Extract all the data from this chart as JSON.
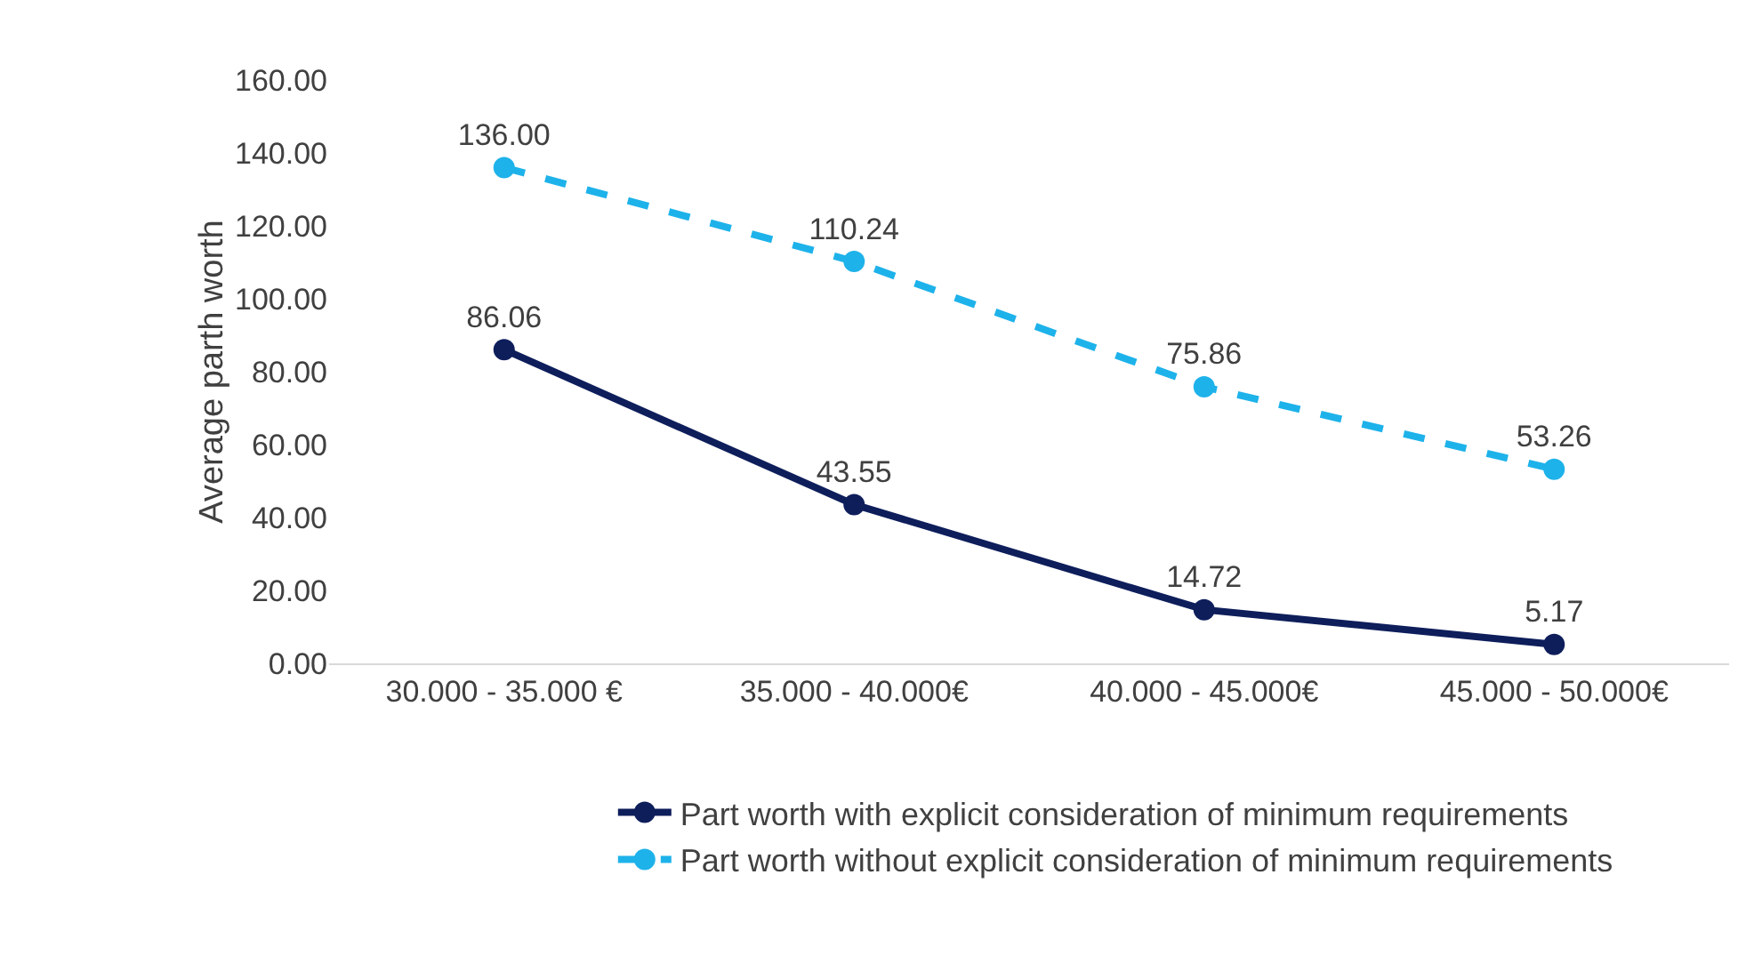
{
  "chart_data": {
    "type": "line",
    "ylabel": "Average parth worth",
    "categories": [
      "30.000 - 35.000 €",
      "35.000 - 40.000€",
      "40.000 - 45.000€",
      "45.000 - 50.000€"
    ],
    "series": [
      {
        "name": "Part worth with explicit consideration of minimum requirements",
        "color": "#0e1e5b",
        "line_style": "solid",
        "values": [
          86.06,
          43.55,
          14.72,
          5.17
        ],
        "value_labels": [
          "86.06",
          "43.55",
          "14.72",
          "5.17"
        ]
      },
      {
        "name": "Part worth without explicit consideration of minimum requirements",
        "color": "#1eb2ea",
        "line_style": "dashed",
        "values": [
          136.0,
          110.24,
          75.86,
          53.26
        ],
        "value_labels": [
          "136.00",
          "110.24",
          "75.86",
          "53.26"
        ]
      }
    ],
    "ylim": [
      0,
      160
    ],
    "yticks": [
      {
        "value": 0,
        "label": "0.00"
      },
      {
        "value": 20,
        "label": "20.00"
      },
      {
        "value": 40,
        "label": "40.00"
      },
      {
        "value": 60,
        "label": "60.00"
      },
      {
        "value": 80,
        "label": "80.00"
      },
      {
        "value": 100,
        "label": "100.00"
      },
      {
        "value": 120,
        "label": "120.00"
      },
      {
        "value": 140,
        "label": "140.00"
      },
      {
        "value": 160,
        "label": "160.00"
      }
    ],
    "grid": false,
    "legend": "bottom",
    "marker": "circle"
  }
}
